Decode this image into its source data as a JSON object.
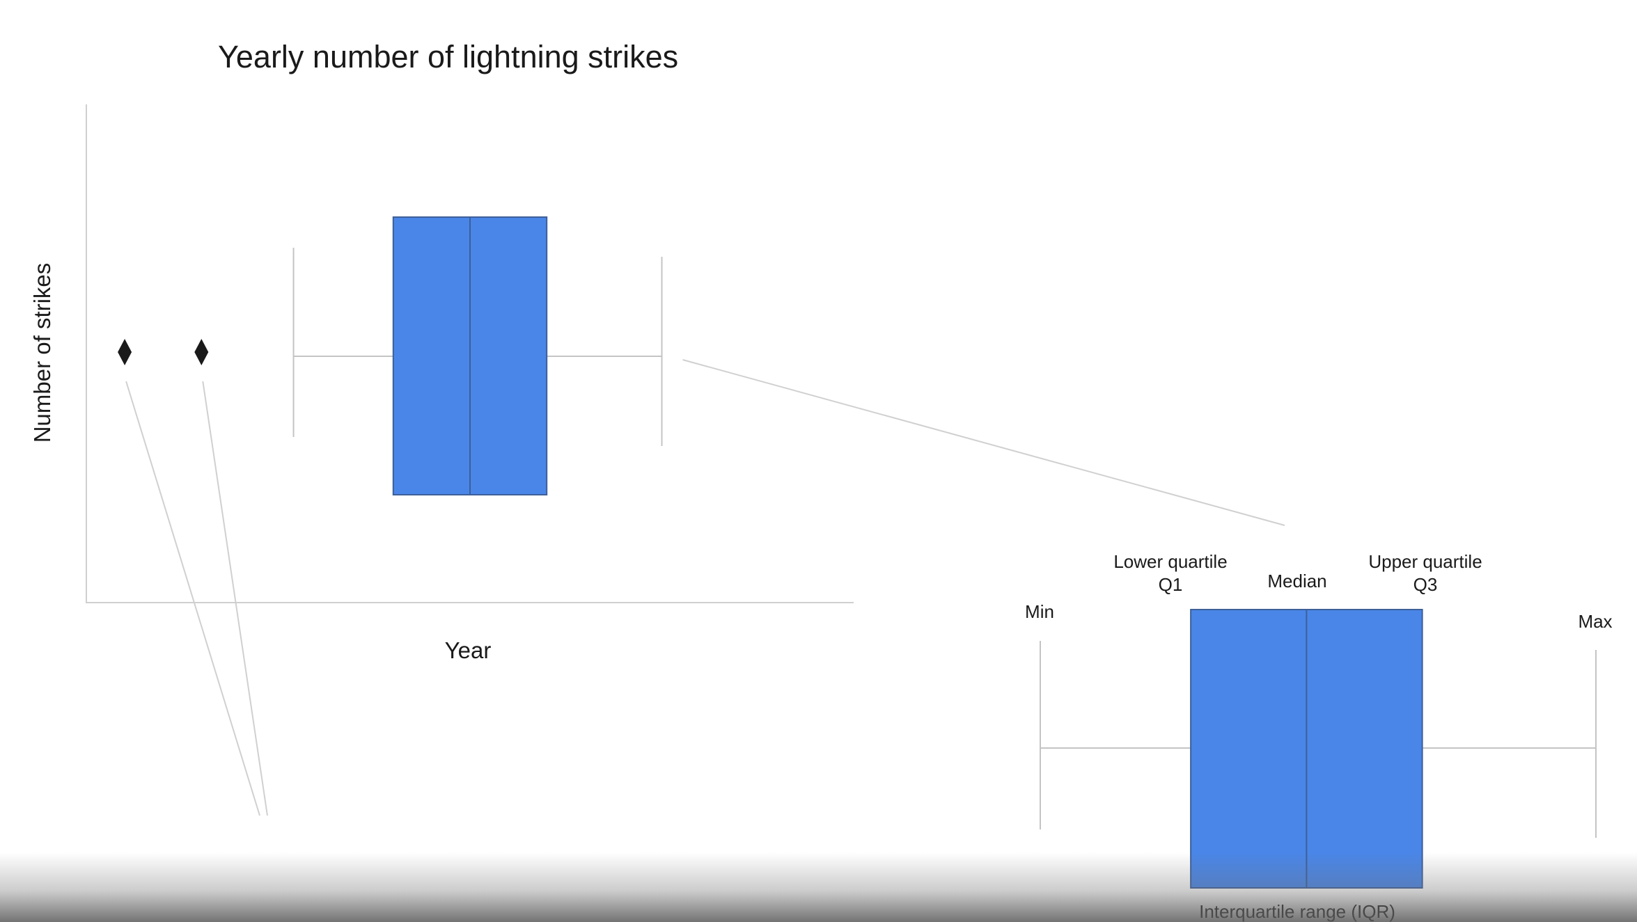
{
  "chart_data": {
    "type": "boxplot",
    "title": "Yearly number of lightning strikes",
    "xlabel": "Year",
    "ylabel": "Number of strikes",
    "orientation": "horizontal",
    "grid": false,
    "colors": {
      "box": "#4a86e8",
      "box_edge": "#3d5f99",
      "whisker": "#c4c4c4",
      "axis": "#cfcfcf",
      "outlier": "#1a1a1a",
      "leader": "#d0d0d0"
    },
    "box": {
      "min": 0.27,
      "q1": 0.4,
      "median": 0.5,
      "q3": 0.6,
      "max": 0.75,
      "outliers": [
        0.05,
        0.15
      ]
    },
    "callout": {
      "lower_quartile_label": "Lower quartile",
      "q1_label": "Q1",
      "median_label": "Median",
      "upper_quartile_label": "Upper quartile",
      "q3_label": "Q3",
      "min_label": "Min",
      "max_label": "Max",
      "iqr_label": "Interquartile range (IQR)"
    }
  }
}
